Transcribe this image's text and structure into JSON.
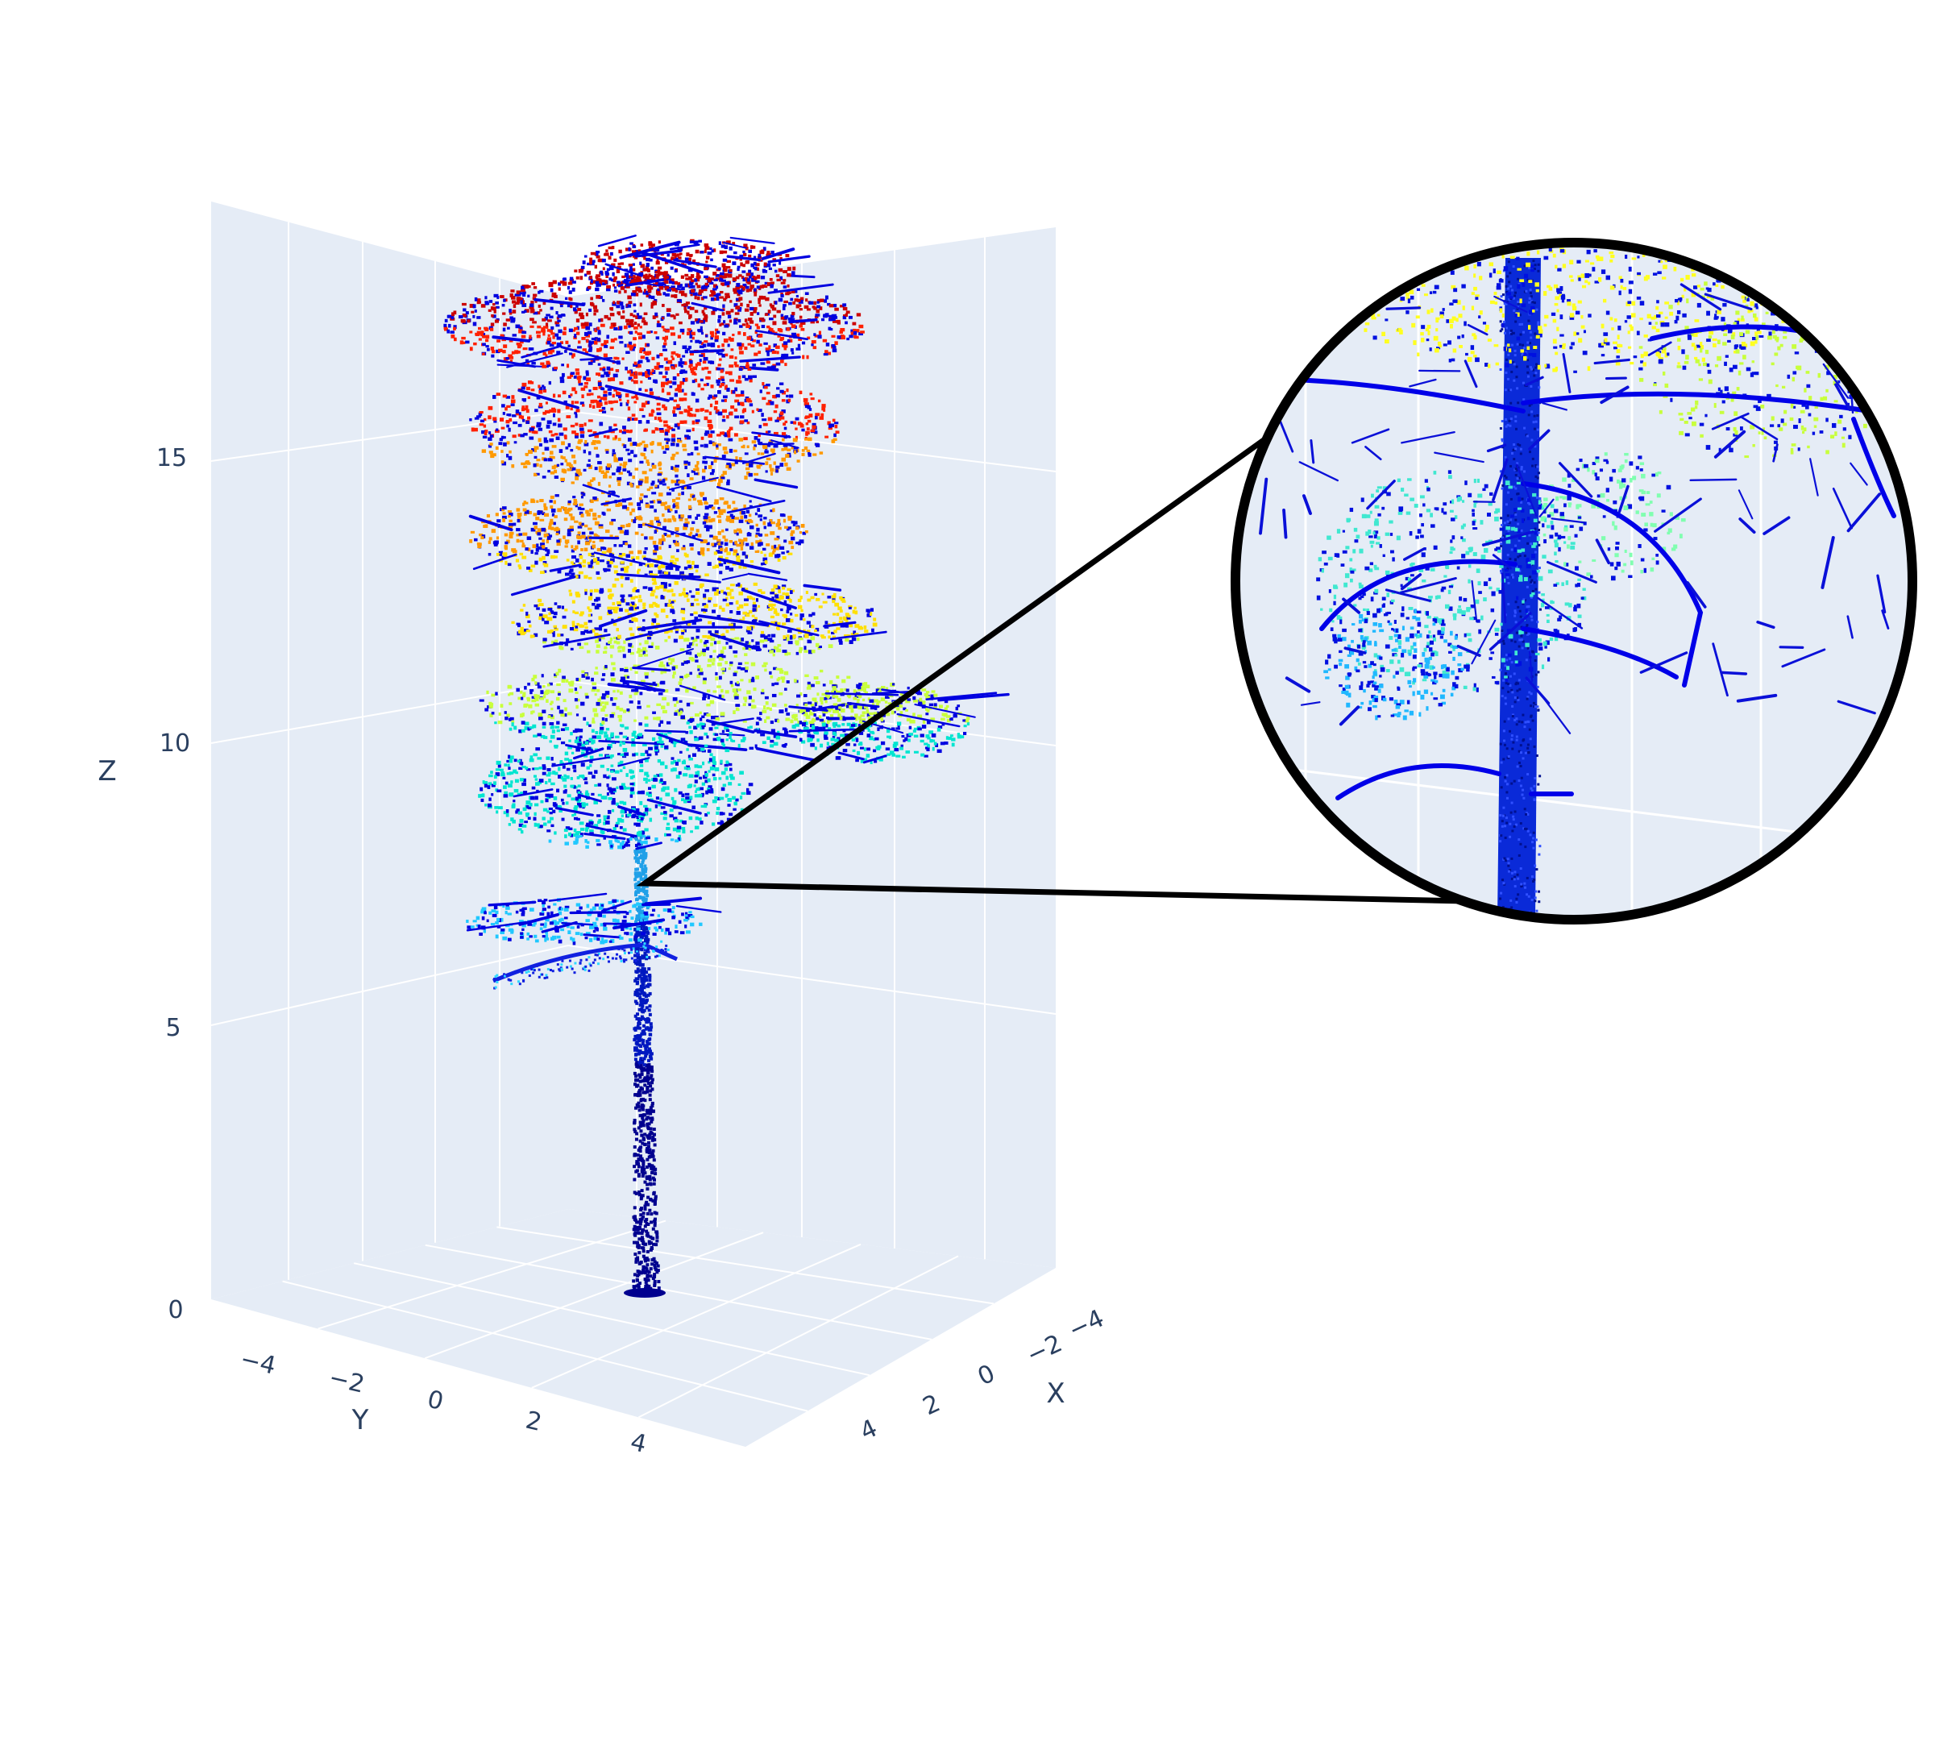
{
  "chart_data": {
    "type": "scatter3d",
    "description_mode": "lidar tree point cloud colored by height (jet colorscale) with a magnified inset of the trunk/branch junction",
    "axes": {
      "x": {
        "title": "X",
        "ticks": [
          "−4",
          "−2",
          "0",
          "2",
          "4"
        ],
        "range": [
          -5,
          5
        ]
      },
      "y": {
        "title": "Y",
        "ticks": [
          "−4",
          "−2",
          "0",
          "2",
          "4"
        ],
        "range": [
          -5,
          5
        ]
      },
      "z": {
        "title": "Z",
        "ticks": [
          "0",
          "5",
          "10",
          "15"
        ],
        "range": [
          0,
          19
        ]
      }
    },
    "grid": true,
    "background_color": "#e5ecf6",
    "gridline_color": "#ffffff",
    "colorscale": [
      "#00008f",
      "#0000ff",
      "#00ffff",
      "#c8ff3c",
      "#ffff00",
      "#ff9900",
      "#ff0000",
      "#800000"
    ],
    "branch_color": "#0000e0",
    "tree": {
      "trunk_base_z": 0,
      "first_branch_z": 6,
      "crown_base_z": 7,
      "top_z": 18.5,
      "crown_layers": [
        {
          "z": 6,
          "color": "#20c8ff"
        },
        {
          "z": 8,
          "color": "#00e5d0"
        },
        {
          "z": 10,
          "color": "#c8ff3c"
        },
        {
          "z": 11.5,
          "color": "#ffe000"
        },
        {
          "z": 13,
          "color": "#ff9900"
        },
        {
          "z": 15,
          "color": "#ff2000"
        },
        {
          "z": 17,
          "color": "#cc0000"
        }
      ]
    },
    "inset": {
      "shape": "circle",
      "zoom_region_z": 7.5,
      "border_color": "#000000"
    }
  }
}
